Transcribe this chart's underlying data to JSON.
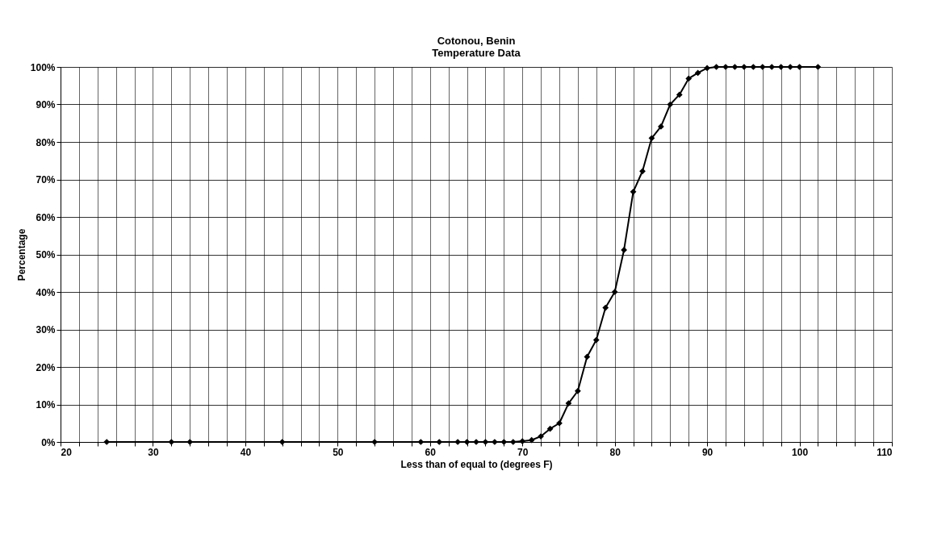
{
  "chart_data": {
    "type": "line",
    "title": "Cotonou, Benin\nTemperature Data",
    "xlabel": "Less than of equal to (degrees F)",
    "ylabel": "Percentage",
    "x": [
      25,
      32,
      34,
      44,
      54,
      59,
      61,
      63,
      64,
      65,
      66,
      67,
      68,
      69,
      70,
      71,
      72,
      73,
      74,
      75,
      76,
      77,
      78,
      79,
      80,
      81,
      82,
      83,
      84,
      85,
      86,
      87,
      88,
      89,
      90,
      91,
      92,
      93,
      94,
      95,
      96,
      97,
      98,
      99,
      100,
      102
    ],
    "series": [
      {
        "color": "#000000",
        "values": [
          0,
          0,
          0,
          0,
          0,
          0,
          0,
          0,
          0,
          0,
          0,
          0,
          0,
          0,
          0.2,
          0.5,
          1.5,
          3.5,
          5.0,
          10.3,
          13.6,
          22.7,
          27.2,
          35.8,
          40,
          51.2,
          66.7,
          72.2,
          81.0,
          84.1,
          90.0,
          92.6,
          96.9,
          98.4,
          99.7,
          100,
          100,
          100,
          100,
          100,
          100,
          100,
          100,
          100,
          100,
          100
        ]
      }
    ],
    "xlim": [
      20,
      110
    ],
    "xticks": [
      20,
      {
        "value": 22,
        "label": null
      },
      {
        "value": 24,
        "label": null
      },
      {
        "value": 26,
        "label": null
      },
      {
        "value": 28,
        "label": null
      },
      30,
      {
        "value": 32,
        "label": null
      },
      {
        "value": 34,
        "label": null
      },
      {
        "value": 36,
        "label": null
      },
      {
        "value": 38,
        "label": null
      },
      40,
      {
        "value": 42,
        "label": null
      },
      {
        "value": 44,
        "label": null
      },
      {
        "value": 46,
        "label": null
      },
      {
        "value": 48,
        "label": null
      },
      50,
      {
        "value": 52,
        "label": null
      },
      {
        "value": 54,
        "label": null
      },
      {
        "value": 56,
        "label": null
      },
      {
        "value": 58,
        "label": null
      },
      60,
      {
        "value": 62,
        "label": null
      },
      {
        "value": 64,
        "label": null
      },
      {
        "value": 66,
        "label": null
      },
      {
        "value": 68,
        "label": null
      },
      70,
      {
        "value": 72,
        "label": null
      },
      {
        "value": 74,
        "label": null
      },
      {
        "value": 76,
        "label": null
      },
      {
        "value": 78,
        "label": null
      },
      80,
      {
        "value": 82,
        "label": null
      },
      {
        "value": 84,
        "label": null
      },
      {
        "value": 86,
        "label": null
      },
      {
        "value": 88,
        "label": null
      },
      90,
      {
        "value": 92,
        "label": null
      },
      {
        "value": 94,
        "label": null
      },
      {
        "value": 96,
        "label": null
      },
      {
        "value": 98,
        "label": null
      },
      100,
      {
        "value": 102,
        "label": null
      },
      {
        "value": 104,
        "label": null
      },
      {
        "value": 106,
        "label": null
      },
      {
        "value": 108,
        "label": null
      },
      110
    ],
    "ylim": [
      0,
      100
    ],
    "yticks": [
      {
        "value": 0,
        "label": "0%"
      },
      {
        "value": 10,
        "label": "10%"
      },
      {
        "value": 20,
        "label": "20%"
      },
      {
        "value": 30,
        "label": "30%"
      },
      {
        "value": 40,
        "label": "40%"
      },
      {
        "value": 50,
        "label": "50%"
      },
      {
        "value": 60,
        "label": "60%"
      },
      {
        "value": 70,
        "label": "70%"
      },
      {
        "value": 80,
        "label": "80%"
      },
      {
        "value": 90,
        "label": "90%"
      },
      {
        "value": 100,
        "label": "100%"
      }
    ],
    "grid": true,
    "marker": "diamond",
    "line_style": "solid"
  }
}
